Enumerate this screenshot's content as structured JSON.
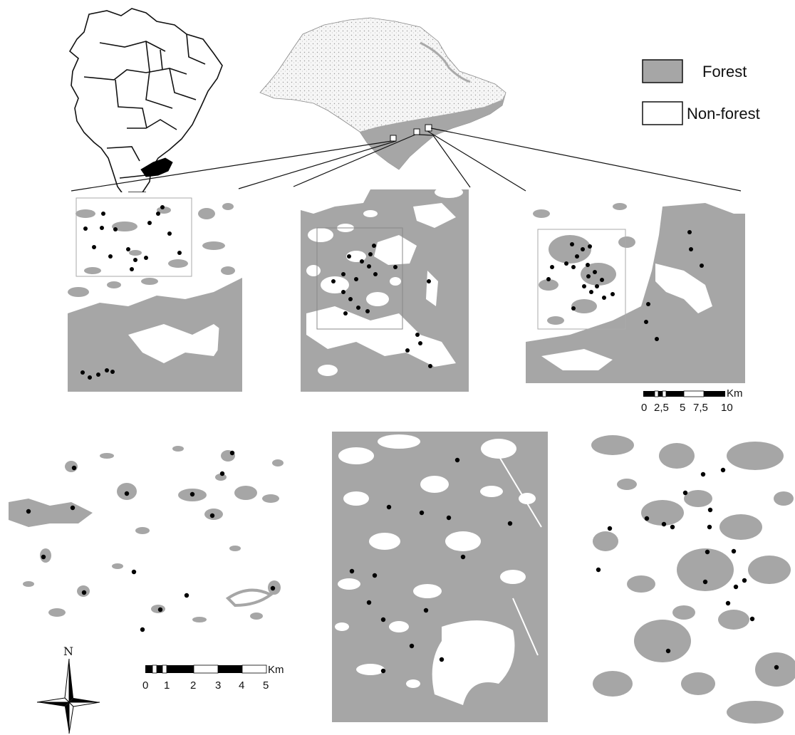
{
  "legend": {
    "items": [
      {
        "label": "Forest",
        "color": "#a6a6a6"
      },
      {
        "label": "Non-forest",
        "color": "#ffffff"
      }
    ]
  },
  "scale_bars": [
    {
      "unit": "Km",
      "ticks": [
        "0",
        "2,5",
        "5",
        "7,5",
        "10"
      ]
    },
    {
      "unit": "Km",
      "ticks": [
        "0",
        "1",
        "2",
        "3",
        "4",
        "5"
      ]
    }
  ],
  "north_arrow": {
    "label": "N",
    "icon": "compass-rose-icon"
  },
  "colors": {
    "forest": "#a6a6a6",
    "non_forest": "#ffffff",
    "highlighted_state": "#000000",
    "sample_point": "#000000"
  }
}
